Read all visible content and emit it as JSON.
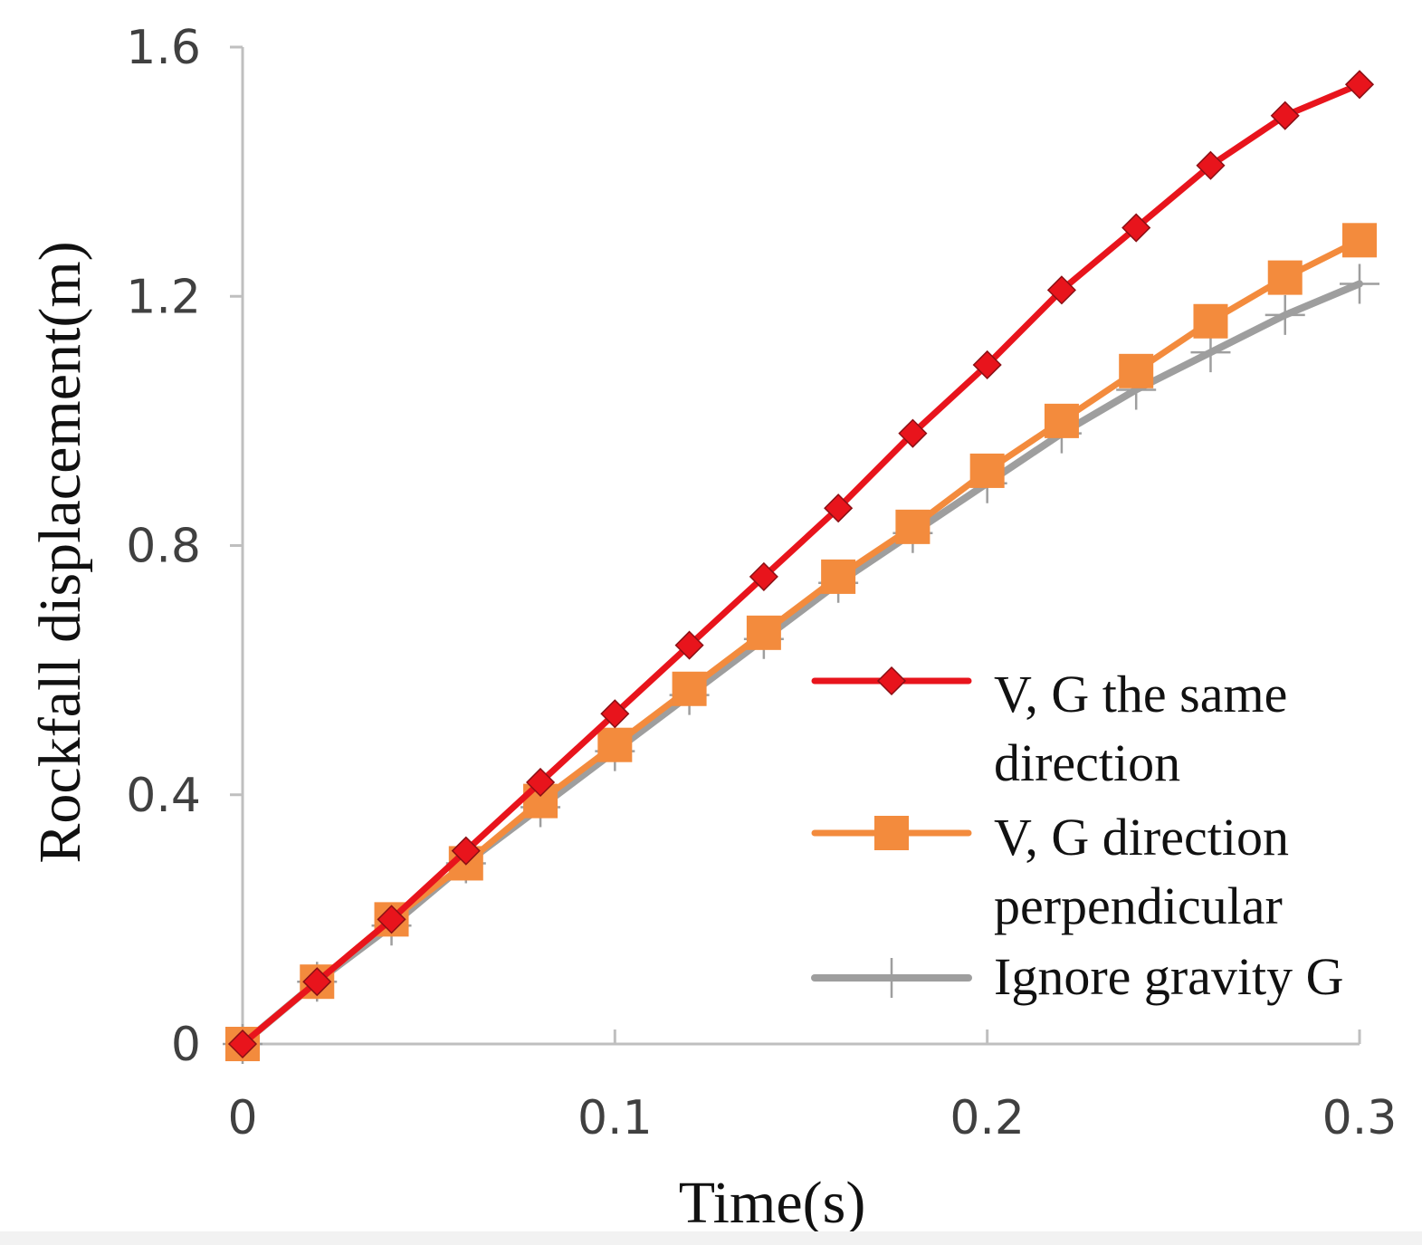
{
  "chart_data": {
    "type": "line",
    "title": "",
    "xlabel": "Time(s)",
    "ylabel": "Rockfall displacement(m)",
    "xlim": [
      0,
      0.3
    ],
    "ylim": [
      0,
      1.6
    ],
    "xticks": [
      0,
      0.1,
      0.2,
      0.3
    ],
    "xtick_labels": [
      "0",
      "0.1",
      "0.2",
      "0.3"
    ],
    "yticks": [
      0,
      0.4,
      0.8,
      1.2,
      1.6
    ],
    "ytick_labels": [
      "0",
      "0.4",
      "0.8",
      "1.2",
      "1.6"
    ],
    "grid": false,
    "legend_position": "right",
    "x": [
      0,
      0.02,
      0.04,
      0.06,
      0.08,
      0.1,
      0.12,
      0.14,
      0.16,
      0.18,
      0.2,
      0.22,
      0.24,
      0.26,
      0.28,
      0.3
    ],
    "series": [
      {
        "name": "V, G the same direction",
        "legend_lines": [
          "V, G the same",
          "direction"
        ],
        "color": "#e8141c",
        "marker": "diamond",
        "values": [
          0,
          0.1,
          0.2,
          0.31,
          0.42,
          0.53,
          0.64,
          0.75,
          0.86,
          0.98,
          1.09,
          1.21,
          1.31,
          1.41,
          1.49,
          1.54
        ]
      },
      {
        "name": "V, G direction perpendicular",
        "legend_lines": [
          "V, G direction",
          "perpendicular"
        ],
        "color": "#f38b3d",
        "marker": "square",
        "values": [
          0,
          0.1,
          0.2,
          0.29,
          0.39,
          0.48,
          0.57,
          0.66,
          0.75,
          0.83,
          0.92,
          1.0,
          1.08,
          1.16,
          1.23,
          1.29
        ]
      },
      {
        "name": "Ignore gravity G",
        "legend_lines": [
          "Ignore gravity G"
        ],
        "color": "#9e9e9e",
        "marker": "plus",
        "values": [
          0,
          0.1,
          0.19,
          0.29,
          0.38,
          0.47,
          0.56,
          0.65,
          0.74,
          0.82,
          0.9,
          0.98,
          1.05,
          1.11,
          1.17,
          1.22
        ]
      }
    ]
  }
}
